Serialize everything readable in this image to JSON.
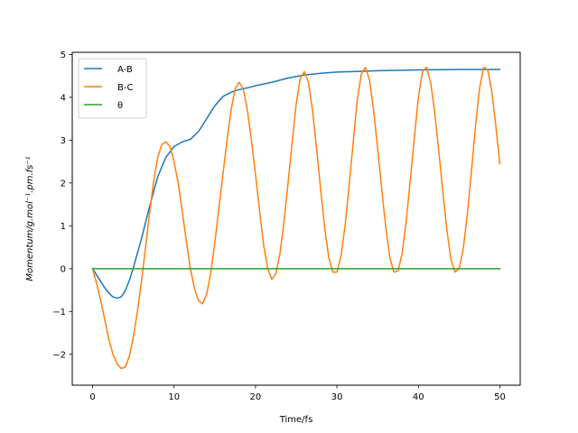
{
  "chart_data": {
    "type": "line",
    "title": "",
    "xlabel": "Time/fs",
    "ylabel": "Momentum/g.mol⁻¹.pm.fs⁻¹",
    "xlim": [
      -2.5,
      52.5
    ],
    "ylim": [
      -2.72,
      5.05
    ],
    "xticks": [
      0,
      10,
      20,
      30,
      40,
      50
    ],
    "yticks": [
      -2,
      -1,
      0,
      1,
      2,
      3,
      4,
      5
    ],
    "xtick_labels": [
      "0",
      "10",
      "20",
      "30",
      "40",
      "50"
    ],
    "ytick_labels": [
      "−2",
      "−1",
      "0",
      "1",
      "2",
      "3",
      "4",
      "5"
    ],
    "grid": false,
    "legend_position": "upper-left",
    "series": [
      {
        "name": "A-B",
        "color": "#1f77b4",
        "points": [
          [
            0,
            0
          ],
          [
            0.5,
            -0.15
          ],
          [
            1,
            -0.3
          ],
          [
            1.5,
            -0.45
          ],
          [
            2,
            -0.57
          ],
          [
            2.5,
            -0.66
          ],
          [
            3,
            -0.69
          ],
          [
            3.5,
            -0.66
          ],
          [
            4,
            -0.52
          ],
          [
            4.5,
            -0.28
          ],
          [
            5,
            0.02
          ],
          [
            6,
            0.7
          ],
          [
            7,
            1.45
          ],
          [
            8,
            2.15
          ],
          [
            9,
            2.6
          ],
          [
            10,
            2.85
          ],
          [
            11,
            2.96
          ],
          [
            12,
            3.02
          ],
          [
            13,
            3.2
          ],
          [
            14,
            3.5
          ],
          [
            15,
            3.8
          ],
          [
            16,
            4.02
          ],
          [
            17,
            4.12
          ],
          [
            18,
            4.18
          ],
          [
            19,
            4.22
          ],
          [
            20,
            4.27
          ],
          [
            22,
            4.35
          ],
          [
            24,
            4.45
          ],
          [
            26,
            4.52
          ],
          [
            28,
            4.56
          ],
          [
            30,
            4.59
          ],
          [
            32,
            4.6
          ],
          [
            35,
            4.62
          ],
          [
            40,
            4.64
          ],
          [
            45,
            4.65
          ],
          [
            50,
            4.65
          ]
        ]
      },
      {
        "name": "B-C",
        "color": "#ff7f0e",
        "points": [
          [
            0,
            0
          ],
          [
            0.5,
            -0.35
          ],
          [
            1,
            -0.75
          ],
          [
            1.5,
            -1.2
          ],
          [
            2,
            -1.65
          ],
          [
            2.5,
            -2.0
          ],
          [
            3,
            -2.22
          ],
          [
            3.5,
            -2.33
          ],
          [
            4,
            -2.3
          ],
          [
            4.5,
            -2.05
          ],
          [
            5,
            -1.6
          ],
          [
            5.5,
            -1.0
          ],
          [
            6,
            -0.3
          ],
          [
            6.5,
            0.5
          ],
          [
            7,
            1.3
          ],
          [
            7.5,
            2.05
          ],
          [
            8,
            2.6
          ],
          [
            8.5,
            2.9
          ],
          [
            9,
            2.96
          ],
          [
            9.5,
            2.85
          ],
          [
            10,
            2.5
          ],
          [
            10.5,
            2.0
          ],
          [
            11,
            1.35
          ],
          [
            11.5,
            0.65
          ],
          [
            12,
            0.0
          ],
          [
            12.5,
            -0.45
          ],
          [
            13,
            -0.75
          ],
          [
            13.5,
            -0.82
          ],
          [
            14,
            -0.6
          ],
          [
            14.5,
            -0.1
          ],
          [
            15,
            0.6
          ],
          [
            15.5,
            1.4
          ],
          [
            16,
            2.2
          ],
          [
            16.5,
            3.0
          ],
          [
            17,
            3.7
          ],
          [
            17.5,
            4.2
          ],
          [
            18,
            4.35
          ],
          [
            18.5,
            4.2
          ],
          [
            19,
            3.7
          ],
          [
            19.5,
            3.0
          ],
          [
            20,
            2.2
          ],
          [
            20.5,
            1.35
          ],
          [
            21,
            0.55
          ],
          [
            21.5,
            0.0
          ],
          [
            22,
            -0.25
          ],
          [
            22.5,
            -0.12
          ],
          [
            23,
            0.35
          ],
          [
            23.5,
            1.1
          ],
          [
            24,
            2.0
          ],
          [
            24.5,
            2.95
          ],
          [
            25,
            3.85
          ],
          [
            25.5,
            4.45
          ],
          [
            26,
            4.6
          ],
          [
            26.5,
            4.35
          ],
          [
            27,
            3.7
          ],
          [
            27.5,
            2.8
          ],
          [
            28,
            1.85
          ],
          [
            28.5,
            0.95
          ],
          [
            29,
            0.25
          ],
          [
            29.5,
            -0.08
          ],
          [
            30,
            -0.08
          ],
          [
            30.5,
            0.3
          ],
          [
            31,
            1.0
          ],
          [
            31.5,
            1.95
          ],
          [
            32,
            2.95
          ],
          [
            32.5,
            3.95
          ],
          [
            33,
            4.55
          ],
          [
            33.5,
            4.7
          ],
          [
            34,
            4.4
          ],
          [
            34.5,
            3.7
          ],
          [
            35,
            2.8
          ],
          [
            35.5,
            1.85
          ],
          [
            36,
            0.95
          ],
          [
            36.5,
            0.25
          ],
          [
            37,
            -0.08
          ],
          [
            37.5,
            -0.05
          ],
          [
            38,
            0.35
          ],
          [
            38.5,
            1.1
          ],
          [
            39,
            2.05
          ],
          [
            39.5,
            3.05
          ],
          [
            40,
            4.0
          ],
          [
            40.5,
            4.6
          ],
          [
            41,
            4.7
          ],
          [
            41.5,
            4.35
          ],
          [
            42,
            3.65
          ],
          [
            42.5,
            2.75
          ],
          [
            43,
            1.8
          ],
          [
            43.5,
            0.9
          ],
          [
            44,
            0.2
          ],
          [
            44.5,
            -0.08
          ],
          [
            45,
            0.0
          ],
          [
            45.5,
            0.45
          ],
          [
            46,
            1.25
          ],
          [
            46.5,
            2.25
          ],
          [
            47,
            3.3
          ],
          [
            47.5,
            4.2
          ],
          [
            48,
            4.7
          ],
          [
            48.5,
            4.65
          ],
          [
            49,
            4.15
          ],
          [
            49.5,
            3.35
          ],
          [
            50,
            2.45
          ]
        ]
      },
      {
        "name": "θ",
        "color": "#2ca02c",
        "points": [
          [
            0,
            0
          ],
          [
            50,
            0
          ]
        ]
      }
    ]
  }
}
